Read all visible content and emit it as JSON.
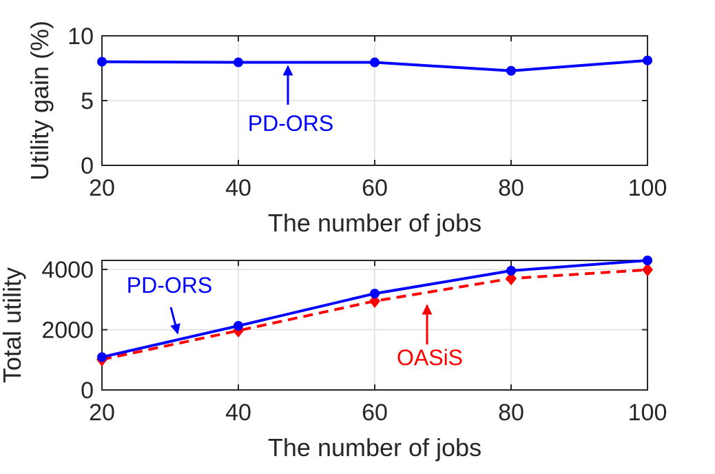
{
  "chart_data": [
    {
      "type": "line",
      "xlabel": "The number of jobs",
      "ylabel": "Utility gain (%)",
      "x": [
        20,
        40,
        60,
        80,
        100
      ],
      "xlim": [
        20,
        100
      ],
      "ylim": [
        0,
        10
      ],
      "xticks": [
        "20",
        "40",
        "60",
        "80",
        "100"
      ],
      "yticks": [
        "0",
        "5",
        "10"
      ],
      "grid": true,
      "series": [
        {
          "name": "PD-ORS",
          "color": "#0000ff",
          "linestyle": "solid",
          "marker": "circle",
          "values": [
            8.0,
            7.95,
            7.95,
            7.3,
            8.1
          ]
        }
      ],
      "annotations": [
        {
          "text": "PD-ORS",
          "color": "#0000ff",
          "points_to": {
            "x": 48,
            "y": 7.95
          }
        }
      ]
    },
    {
      "type": "line",
      "xlabel": "The number of jobs",
      "ylabel": "Total utility",
      "x": [
        20,
        40,
        60,
        80,
        100
      ],
      "xlim": [
        20,
        100
      ],
      "ylim": [
        0,
        4300
      ],
      "xticks": [
        "20",
        "40",
        "60",
        "80",
        "100"
      ],
      "yticks": [
        "0",
        "2000",
        "4000"
      ],
      "grid": true,
      "series": [
        {
          "name": "PD-ORS",
          "color": "#0000ff",
          "linestyle": "solid",
          "marker": "circle",
          "values": [
            1090,
            2130,
            3200,
            3960,
            4300
          ]
        },
        {
          "name": "OASiS",
          "color": "#ff0000",
          "linestyle": "dashed",
          "marker": "diamond",
          "values": [
            1010,
            1970,
            2950,
            3700,
            3990
          ]
        }
      ],
      "annotations": [
        {
          "text": "PD-ORS",
          "color": "#0000ff",
          "points_to": {
            "x": 32,
            "y": 1700
          }
        },
        {
          "text": "OASiS",
          "color": "#ff0000",
          "points_to": {
            "x": 68,
            "y": 3250
          }
        }
      ]
    }
  ]
}
